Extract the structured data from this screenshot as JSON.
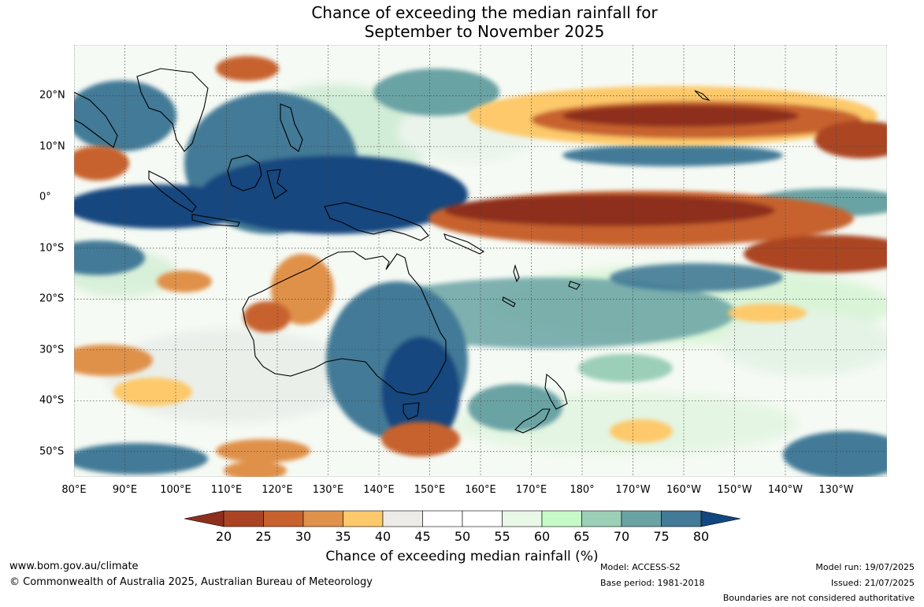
{
  "title_line1": "Chance of exceeding the median rainfall for",
  "title_line2": "September to November 2025",
  "longitude_labels": [
    "80°E",
    "90°E",
    "100°E",
    "110°E",
    "120°E",
    "130°E",
    "140°E",
    "150°E",
    "160°E",
    "170°E",
    "180°",
    "170°W",
    "160°W",
    "150°W",
    "140°W",
    "130°W"
  ],
  "latitude_labels": [
    "20°N",
    "10°N",
    "0°",
    "10°S",
    "20°S",
    "30°S",
    "40°S",
    "50°S"
  ],
  "map_extent": {
    "lon_min": 80,
    "lon_max": 240,
    "lat_min": -55,
    "lat_max": 30
  },
  "colorbar": {
    "label": "Chance of exceeding median rainfall (%)",
    "ticks": [
      "20",
      "25",
      "30",
      "35",
      "40",
      "45",
      "50",
      "55",
      "60",
      "65",
      "70",
      "75",
      "80"
    ],
    "colors": [
      "#8e2f1e",
      "#ab4424",
      "#c7622e",
      "#e0914a",
      "#fdc96a",
      "#ecebe6",
      "#ffffff",
      "#ffffff",
      "#eaf8e8",
      "#c6fbc8",
      "#9ccfb7",
      "#6aa3a4",
      "#427a97",
      "#12467f"
    ]
  },
  "footer": {
    "website": "www.bom.gov.au/climate",
    "copyright": "© Commonwealth of Australia 2025, Australian Bureau of Meteorology",
    "model": "Model: ACCESS-S2",
    "base_period": "Base period: 1981-2018",
    "model_run": "Model run: 19/07/2025",
    "issued": "Issued: 21/07/2025",
    "disclaimer": "Boundaries are not considered authoritative"
  }
}
